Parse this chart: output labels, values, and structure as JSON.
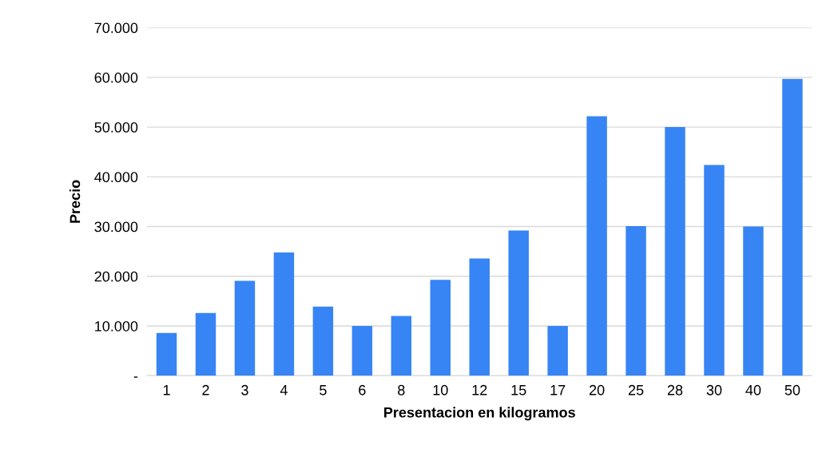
{
  "chart_data": {
    "type": "bar",
    "xlabel": "Presentacion en kilogramos",
    "ylabel": "Precio",
    "categories": [
      "1",
      "2",
      "3",
      "4",
      "5",
      "6",
      "8",
      "10",
      "12",
      "15",
      "17",
      "20",
      "25",
      "28",
      "30",
      "40",
      "50"
    ],
    "values": [
      8600,
      12600,
      19100,
      24800,
      13900,
      10000,
      12000,
      19300,
      23600,
      29200,
      10000,
      52200,
      30100,
      50000,
      42400,
      30000,
      59700
    ],
    "color": "#3784f5",
    "ylim": [
      0,
      70000
    ],
    "yticks": [
      {
        "value": 0,
        "label": "-"
      },
      {
        "value": 10000,
        "label": "10.000"
      },
      {
        "value": 20000,
        "label": "20.000"
      },
      {
        "value": 30000,
        "label": "30.000"
      },
      {
        "value": 40000,
        "label": "40.000"
      },
      {
        "value": 50000,
        "label": "50.000"
      },
      {
        "value": 60000,
        "label": "60.000"
      },
      {
        "value": 70000,
        "label": "70.000"
      }
    ],
    "grid": "y",
    "legend": false
  }
}
